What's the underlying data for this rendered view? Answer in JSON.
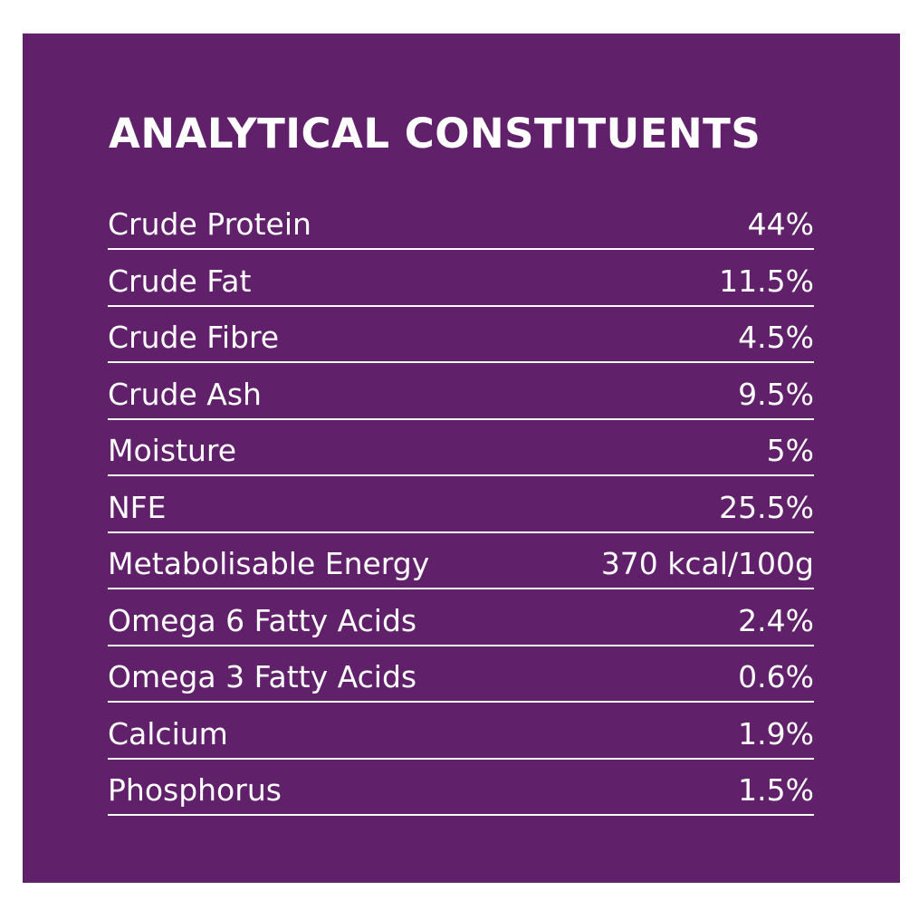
{
  "panel": {
    "background": "#60206a",
    "title": "ANALYTICAL CONSTITUENTS"
  },
  "rows": [
    {
      "label": "Crude Protein",
      "value": "44%"
    },
    {
      "label": "Crude Fat",
      "value": "11.5%"
    },
    {
      "label": "Crude Fibre",
      "value": "4.5%"
    },
    {
      "label": "Crude Ash",
      "value": "9.5%"
    },
    {
      "label": "Moisture",
      "value": "5%"
    },
    {
      "label": "NFE",
      "value": "25.5%"
    },
    {
      "label": "Metabolisable Energy",
      "value": "370 kcal/100g"
    },
    {
      "label": "Omega 6 Fatty Acids",
      "value": "2.4%"
    },
    {
      "label": "Omega 3 Fatty Acids",
      "value": "0.6%"
    },
    {
      "label": "Calcium",
      "value": "1.9%"
    },
    {
      "label": "Phosphorus",
      "value": "1.5%"
    }
  ]
}
